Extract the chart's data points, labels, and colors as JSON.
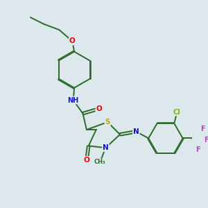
{
  "bg_color": "#dce8ec",
  "bond_color": "#2a6b2a",
  "atom_colors": {
    "O": "#ee0000",
    "N": "#1111cc",
    "S": "#bbaa00",
    "Cl": "#77bb00",
    "F": "#bb44bb",
    "C": "#2a6b2a"
  },
  "bond_width": 1.4
}
